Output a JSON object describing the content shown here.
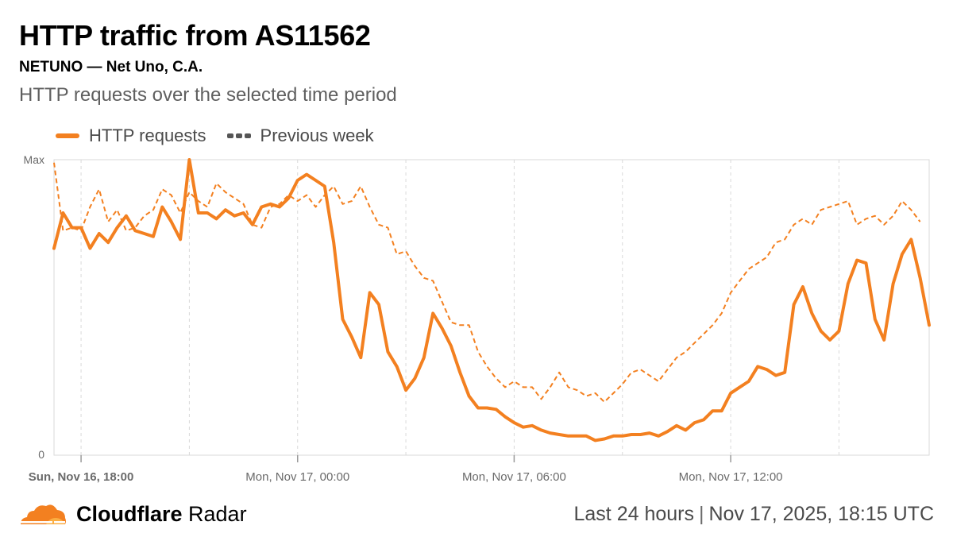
{
  "header": {
    "title": "HTTP traffic from AS11562",
    "subtitle": "NETUNO — Net Uno, C.A.",
    "description": "HTTP requests over the selected time period"
  },
  "footer": {
    "brand_bold": "Cloudflare",
    "brand_light": "Radar",
    "range": "Last 24 hours",
    "separator": "|",
    "timestamp": "Nov 17, 2025, 18:15 UTC"
  },
  "colors": {
    "primary": "#f38020",
    "secondary": "#f38020",
    "grid": "#d9d9d9",
    "axis_text": "#6a6a6a"
  },
  "chart_data": {
    "type": "line",
    "title": "HTTP requests over the selected time period",
    "xlabel": "",
    "ylabel": "",
    "ylim": [
      0,
      100
    ],
    "y_tick_labels": [
      "0",
      "Max"
    ],
    "x_tick_labels": [
      "Sun, Nov 16, 18:00",
      "Mon, Nov 17, 00:00",
      "Mon, Nov 17, 06:00",
      "Mon, Nov 17, 12:00"
    ],
    "x_tick_indices": [
      3,
      27,
      51,
      75
    ],
    "x_minor_grid_indices": [
      15,
      39,
      63,
      87
    ],
    "legend": [
      "HTTP requests",
      "Previous week"
    ],
    "legend_position": "top-left",
    "series": [
      {
        "name": "HTTP requests",
        "style": "solid",
        "values": [
          70,
          82,
          77,
          77,
          70,
          75,
          72,
          77,
          81,
          76,
          75,
          74,
          84,
          79,
          73,
          100,
          82,
          82,
          80,
          83,
          81,
          82,
          78,
          84,
          85,
          84,
          87,
          93,
          95,
          93,
          91,
          72,
          46,
          40,
          33,
          55,
          51,
          35,
          30,
          22,
          26,
          33,
          48,
          43,
          37,
          28,
          20,
          16,
          16,
          15.5,
          13,
          11,
          9.5,
          10,
          8.5,
          7.5,
          7,
          6.5,
          6.5,
          6.5,
          5,
          5.5,
          6.5,
          6.5,
          7,
          7,
          7.5,
          6.5,
          8,
          10,
          8.5,
          11,
          12,
          15,
          15,
          21,
          23,
          25,
          30,
          29,
          27,
          28,
          51,
          57,
          48,
          42,
          39,
          42,
          58,
          66,
          65,
          46,
          39,
          58,
          68,
          73,
          60,
          44
        ]
      },
      {
        "name": "Previous week",
        "style": "dashed",
        "values": [
          99,
          76,
          77,
          76,
          84,
          90,
          79,
          83,
          76,
          77,
          81,
          83,
          90,
          88,
          82,
          89,
          86,
          84,
          92,
          89,
          87,
          85,
          78,
          77,
          84,
          85,
          88,
          86,
          88,
          84,
          88,
          91,
          85,
          86,
          91,
          84,
          78,
          77,
          68,
          69,
          64,
          60,
          59,
          52,
          45,
          44,
          44,
          35,
          30,
          26,
          23,
          25,
          23,
          23,
          19,
          23,
          28,
          23,
          22,
          20,
          21,
          18,
          21,
          24,
          28,
          29,
          27,
          25,
          29,
          33,
          35,
          38,
          41,
          44,
          48,
          55,
          59,
          63,
          65,
          67,
          72,
          73,
          78,
          80,
          78,
          83,
          84,
          85,
          86,
          78,
          80,
          81,
          78,
          81,
          86,
          83,
          79
        ]
      }
    ]
  }
}
